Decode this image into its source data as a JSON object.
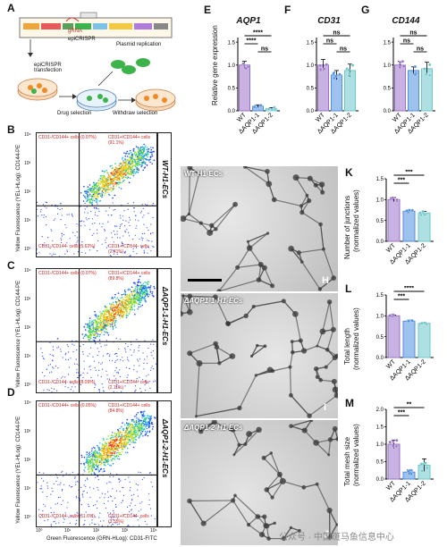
{
  "panels": {
    "A": {
      "label": "A",
      "plasmid_title": "epiCRISPR",
      "plasmid_parts": [
        "EF1α",
        "Cas9",
        "loxP",
        "GFP",
        "Puro",
        "SV40",
        "pA",
        "IRES"
      ],
      "plasmid_top": "gRNA",
      "step1": "epiCRISPR transfection",
      "step2": "Plasmid replication",
      "arrow1": "Drug selection",
      "arrow2": "Withdraw selection"
    },
    "B": {
      "label": "B",
      "sample": "WT-H1-ECs"
    },
    "C": {
      "label": "C",
      "sample": "ΔAQP1-1-H1-ECs"
    },
    "D": {
      "label": "D",
      "sample": "ΔAQP1-2-H1-ECs"
    },
    "E": {
      "label": "E",
      "gene": "AQP1"
    },
    "F": {
      "label": "F",
      "gene": "CD31"
    },
    "G": {
      "label": "G",
      "gene": "CD144"
    },
    "H": {
      "label": "H",
      "sample": "WT-H1-ECs"
    },
    "I": {
      "label": "I",
      "sample": "ΔAQP1-1-H1-ECs"
    },
    "J": {
      "label": "J",
      "sample": "ΔAQP1-2-H1-ECs"
    },
    "K": {
      "label": "K",
      "ylabel1": "Number of junctions",
      "ylabel2": "(normalized values)"
    },
    "L": {
      "label": "L",
      "ylabel1": "Total length",
      "ylabel2": "(normalized values)"
    },
    "M": {
      "label": "M",
      "ylabel1": "Total mesh size",
      "ylabel2": "(normalized values)"
    }
  },
  "facs": {
    "yaxis": "Yellow Fluorescence (YEL-HLog): CD144-PE",
    "xaxis": "Green Fluorescence (GRN-HLog): CD31-FITC",
    "ticks": [
      "10⁰",
      "10¹",
      "10²",
      "10³",
      "10⁴"
    ],
    "gates": [
      {
        "ul": "CD31-/CD144+ cells (0.07%)",
        "ur": "CD31+/CD144+ cells (91.1%)",
        "ll": "CD31-/CD144- cells (5.62%)",
        "lr": "CD31+/CD144- cells (2.41%)"
      },
      {
        "ul": "CD31-/CD144+ cells (0.07%)",
        "ur": "CD31+/CD144+ cells (89.8%)",
        "ll": "CD31-/CD144- cells (8.09%)",
        "lr": "CD31+/CD144- cells (2.11%)"
      },
      {
        "ul": "CD31-/CD144+ cells (0.05%)",
        "ur": "CD31+/CD144+ cells (84.8%)",
        "ll": "CD31-/CD144- cells (11.6%)",
        "lr": "CD31+/CD144- cells (3.55%)"
      }
    ]
  },
  "shared_ylabel": "Relative gene expression",
  "categories": [
    "WT",
    "ΔAQP1-1",
    "ΔAQP1-2"
  ],
  "colors": {
    "wt": "#9b72c9",
    "ko1": "#4f8fe0",
    "ko2": "#6cc7cc",
    "sig": "#000000"
  },
  "chart_data": [
    {
      "type": "bar",
      "title": "AQP1",
      "ylabel": "Relative gene expression",
      "categories": [
        "WT",
        "ΔAQP1-1",
        "ΔAQP1-2"
      ],
      "values": [
        1.0,
        0.1,
        0.05
      ],
      "errors": [
        0.08,
        0.03,
        0.02
      ],
      "ylim": [
        0,
        1.6
      ],
      "yticks": [
        0.0,
        0.5,
        1.0,
        1.5
      ],
      "sig": [
        {
          "from": 0,
          "to": 2,
          "label": "****"
        },
        {
          "from": 0,
          "to": 1,
          "label": "****"
        },
        {
          "from": 1,
          "to": 2,
          "label": "ns"
        }
      ]
    },
    {
      "type": "bar",
      "title": "CD31",
      "categories": [
        "WT",
        "ΔAQP1-1",
        "ΔAQP1-2"
      ],
      "values": [
        1.0,
        0.78,
        0.88
      ],
      "errors": [
        0.12,
        0.1,
        0.14
      ],
      "ylim": [
        0,
        1.6
      ],
      "yticks": [
        0.0,
        0.5,
        1.0,
        1.5
      ],
      "sig": [
        {
          "from": 0,
          "to": 2,
          "label": "ns"
        },
        {
          "from": 0,
          "to": 1,
          "label": "ns"
        },
        {
          "from": 1,
          "to": 2,
          "label": "ns"
        }
      ]
    },
    {
      "type": "bar",
      "title": "CD144",
      "categories": [
        "WT",
        "ΔAQP1-1",
        "ΔAQP1-2"
      ],
      "values": [
        1.0,
        0.88,
        0.92
      ],
      "errors": [
        0.08,
        0.08,
        0.14
      ],
      "ylim": [
        0,
        1.6
      ],
      "yticks": [
        0.0,
        0.5,
        1.0,
        1.5
      ],
      "sig": [
        {
          "from": 0,
          "to": 2,
          "label": "ns"
        },
        {
          "from": 0,
          "to": 1,
          "label": "ns"
        },
        {
          "from": 1,
          "to": 2,
          "label": "ns"
        }
      ]
    },
    {
      "type": "bar",
      "ylabel": "Number of junctions (normalized values)",
      "categories": [
        "WT",
        "ΔAQP1-1",
        "ΔAQP1-2"
      ],
      "values": [
        1.0,
        0.72,
        0.68
      ],
      "errors": [
        0.05,
        0.03,
        0.04
      ],
      "ylim": [
        0,
        1.5
      ],
      "yticks": [
        0.0,
        0.5,
        1.0,
        1.5
      ],
      "sig": [
        {
          "from": 0,
          "to": 2,
          "label": "***"
        },
        {
          "from": 0,
          "to": 1,
          "label": "***"
        }
      ]
    },
    {
      "type": "bar",
      "ylabel": "Total length (normalized values)",
      "categories": [
        "WT",
        "ΔAQP1-1",
        "ΔAQP1-2"
      ],
      "values": [
        1.0,
        0.87,
        0.82
      ],
      "errors": [
        0.02,
        0.02,
        0.02
      ],
      "ylim": [
        0,
        1.5
      ],
      "yticks": [
        0.0,
        0.5,
        1.0,
        1.5
      ],
      "sig": [
        {
          "from": 0,
          "to": 2,
          "label": "****"
        },
        {
          "from": 0,
          "to": 1,
          "label": "***"
        }
      ]
    },
    {
      "type": "bar",
      "ylabel": "Total mesh size (normalized values)",
      "categories": [
        "WT",
        "ΔAQP1-1",
        "ΔAQP1-2"
      ],
      "values": [
        1.0,
        0.2,
        0.4
      ],
      "errors": [
        0.12,
        0.06,
        0.18
      ],
      "ylim": [
        0,
        2.0
      ],
      "yticks": [
        0.0,
        0.5,
        1.0,
        1.5,
        2.0
      ],
      "sig": [
        {
          "from": 0,
          "to": 2,
          "label": "**"
        },
        {
          "from": 0,
          "to": 1,
          "label": "***"
        }
      ]
    }
  ],
  "watermark": "公众号 · 中国斑马鱼信息中心"
}
